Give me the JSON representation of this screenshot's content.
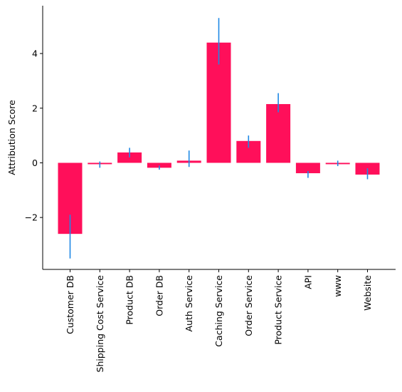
{
  "chart_data": {
    "type": "bar",
    "title": "",
    "xlabel": "",
    "ylabel": "Attribution Score",
    "ylim": [
      -3.9,
      5.75
    ],
    "yticks": [
      -2,
      0,
      2,
      4
    ],
    "grid": false,
    "categories": [
      "Customer DB",
      "Shipping Cost Service",
      "Product DB",
      "Order DB",
      "Auth Service",
      "Caching Service",
      "Order Service",
      "Product Service",
      "API",
      "www",
      "Website"
    ],
    "values": [
      -2.6,
      -0.05,
      0.38,
      -0.18,
      0.08,
      4.4,
      0.8,
      2.15,
      -0.38,
      -0.05,
      -0.43
    ],
    "error_low": [
      -3.5,
      -0.18,
      0.2,
      -0.25,
      -0.15,
      3.6,
      0.55,
      1.85,
      -0.55,
      -0.12,
      -0.6
    ],
    "error_high": [
      -1.9,
      0.05,
      0.55,
      -0.1,
      0.45,
      5.3,
      1.0,
      2.55,
      -0.3,
      0.08,
      -0.2
    ],
    "bar_color": "#ff0f5a",
    "error_color": "#1e88e5"
  }
}
